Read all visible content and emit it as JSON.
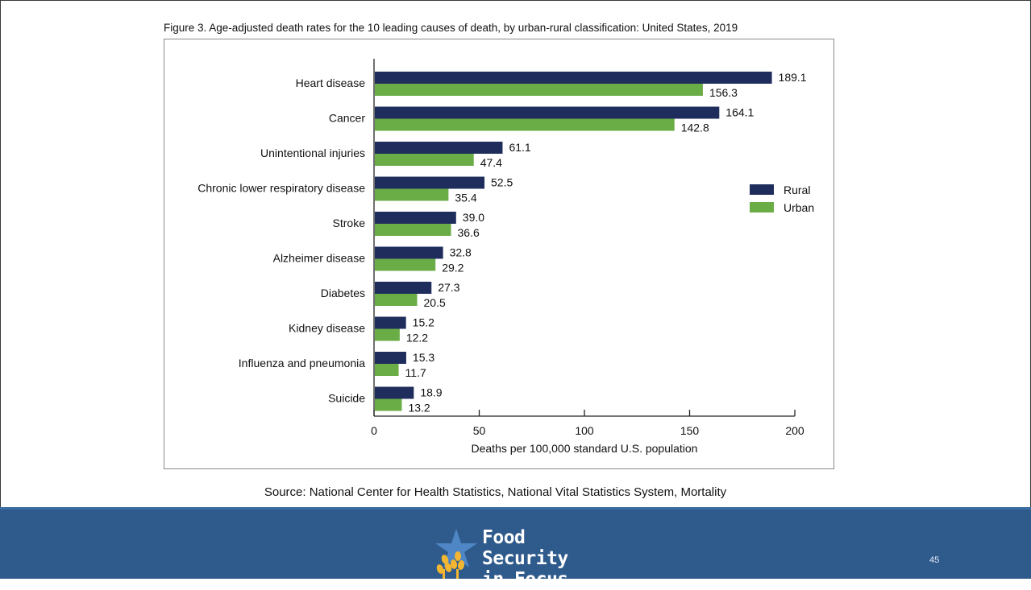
{
  "title": "Figure 3. Age-adjusted death rates for the 10 leading causes of death, by urban-rural classification: United States, 2019",
  "source": "Source: National Center for Health Statistics, National Vital Statistics System, Mortality",
  "logo": {
    "line1": "Food Security",
    "line2": "in Focus",
    "icon": "wheat-star-icon"
  },
  "page_number": "45",
  "colors": {
    "rural": "#1f2d5c",
    "urban": "#6aac46",
    "footer": "#2f5a8c"
  },
  "chart_data": {
    "type": "bar",
    "orientation": "horizontal",
    "categories": [
      "Heart disease",
      "Cancer",
      "Unintentional injuries",
      "Chronic lower respiratory disease",
      "Stroke",
      "Alzheimer disease",
      "Diabetes",
      "Kidney disease",
      "Influenza and pneumonia",
      "Suicide"
    ],
    "series": [
      {
        "name": "Rural",
        "values": [
          189.1,
          164.1,
          61.1,
          52.5,
          39.0,
          32.8,
          27.3,
          15.2,
          15.3,
          18.9
        ]
      },
      {
        "name": "Urban",
        "values": [
          156.3,
          142.8,
          47.4,
          35.4,
          36.6,
          29.2,
          20.5,
          12.2,
          11.7,
          13.2
        ]
      }
    ],
    "xlabel": "Deaths per 100,000 standard U.S. population",
    "xlim": [
      0,
      200
    ],
    "xticks": [
      0,
      50,
      100,
      150,
      200
    ],
    "legend_position": "right",
    "grid": false
  }
}
